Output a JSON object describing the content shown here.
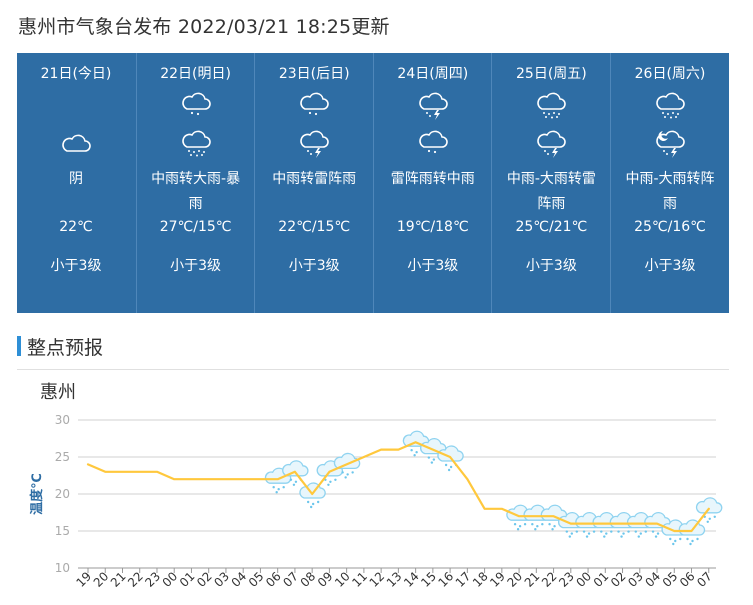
{
  "header": {
    "title": "惠州市气象台发布 2022/03/21 18:25更新"
  },
  "forecast": [
    {
      "date": "21日(今日)",
      "day_icon": "",
      "night_icon": "cloud-icon",
      "desc": "阴",
      "temp": "22℃",
      "wind": "小于3级"
    },
    {
      "date": "22日(明日)",
      "day_icon": "light-rain-icon",
      "night_icon": "heavy-rain-icon",
      "desc": "中雨转大雨-暴雨",
      "temp": "27℃/15℃",
      "wind": "小于3级"
    },
    {
      "date": "23日(后日)",
      "day_icon": "light-rain-icon",
      "night_icon": "thunder-rain-icon",
      "desc": "中雨转雷阵雨",
      "temp": "22℃/15℃",
      "wind": "小于3级"
    },
    {
      "date": "24日(周四)",
      "day_icon": "thunder-rain-icon",
      "night_icon": "light-rain-icon",
      "desc": "雷阵雨转中雨",
      "temp": "19℃/18℃",
      "wind": "小于3级"
    },
    {
      "date": "25日(周五)",
      "day_icon": "heavy-rain-icon",
      "night_icon": "thunder-rain-icon",
      "desc": "中雨-大雨转雷阵雨",
      "temp": "25℃/21℃",
      "wind": "小于3级"
    },
    {
      "date": "26日(周六)",
      "day_icon": "heavy-rain-icon",
      "night_icon": "night-thunder-rain-icon",
      "desc": "中雨-大雨转阵雨",
      "temp": "25℃/16℃",
      "wind": "小于3级"
    }
  ],
  "hourly": {
    "heading": "整点预报"
  },
  "chart_data": {
    "type": "line",
    "title": "惠州",
    "ylabel": "温度℃",
    "xlabel": "",
    "ylim": [
      10,
      30
    ],
    "yticks": [
      10,
      15,
      20,
      25,
      30
    ],
    "grid": true,
    "line_color": "#ffc83d",
    "categories": [
      "19",
      "20",
      "21",
      "22",
      "23",
      "00",
      "01",
      "02",
      "03",
      "04",
      "05",
      "06",
      "07",
      "08",
      "09",
      "10",
      "11",
      "12",
      "13",
      "14",
      "15",
      "16",
      "17",
      "18",
      "19",
      "20",
      "21",
      "22",
      "23",
      "00",
      "01",
      "02",
      "03",
      "04",
      "05",
      "06",
      "07"
    ],
    "series": [
      {
        "values": [
          24,
          23,
          23,
          23,
          23,
          22,
          22,
          22,
          22,
          22,
          22,
          22,
          23,
          20,
          23,
          24,
          25,
          26,
          26,
          27,
          26,
          25,
          22,
          18,
          18,
          17,
          17,
          17,
          16,
          16,
          16,
          16,
          16,
          16,
          15,
          15,
          18
        ]
      }
    ],
    "rain_hours": [
      "06",
      "07",
      "08",
      "09",
      "10",
      "14",
      "15",
      "16",
      "20",
      "21",
      "22",
      "23",
      "00",
      "01",
      "02",
      "03",
      "04",
      "05",
      "06",
      "07"
    ]
  }
}
